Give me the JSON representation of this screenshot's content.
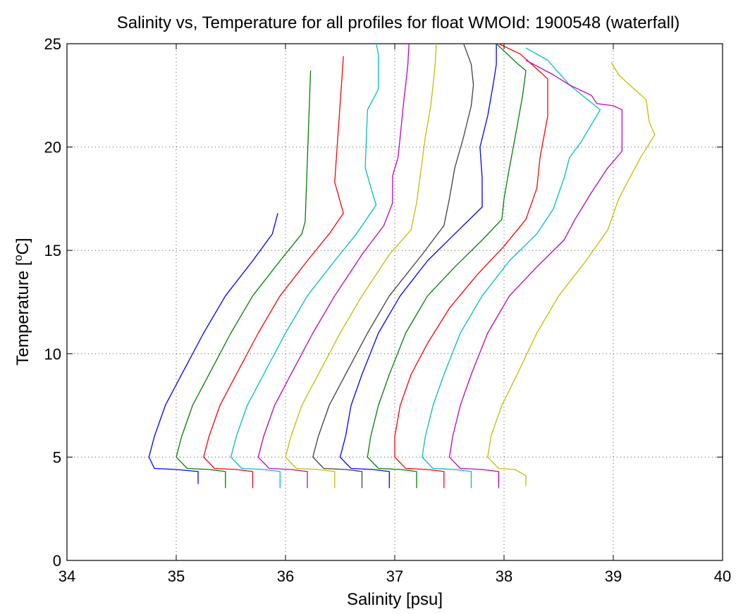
{
  "chart_data": {
    "type": "line",
    "title": "Salinity vs, Temperature for all profiles for float WMOId: 1900548 (waterfall)",
    "xlabel": "Salinity [psu]",
    "ylabel_prefix": "Temperature [",
    "ylabel_sup": "o",
    "ylabel_suffix": "C]",
    "xlim": [
      34,
      40
    ],
    "ylim": [
      0,
      25
    ],
    "xticks": [
      34,
      35,
      36,
      37,
      38,
      39,
      40
    ],
    "yticks": [
      0,
      5,
      10,
      15,
      20,
      25
    ],
    "xtick_labels": [
      "34",
      "35",
      "36",
      "37",
      "38",
      "39",
      "40"
    ],
    "ytick_labels": [
      "0",
      "5",
      "10",
      "15",
      "20",
      "25"
    ],
    "grid": true,
    "series": [
      {
        "color": "#0000ff",
        "points": [
          [
            35.93,
            16.8
          ],
          [
            35.88,
            15.8
          ],
          [
            35.7,
            14.5
          ],
          [
            35.45,
            12.8
          ],
          [
            35.25,
            11.0
          ],
          [
            35.05,
            9.0
          ],
          [
            34.9,
            7.5
          ],
          [
            34.8,
            6.0
          ],
          [
            34.75,
            5.0
          ],
          [
            34.8,
            4.45
          ],
          [
            35.0,
            4.4
          ],
          [
            35.2,
            4.3
          ],
          [
            35.2,
            4.0
          ],
          [
            35.2,
            3.7
          ]
        ]
      },
      {
        "color": "#008000",
        "points": [
          [
            36.23,
            23.7
          ],
          [
            36.18,
            16.4
          ],
          [
            36.15,
            15.8
          ],
          [
            35.95,
            14.5
          ],
          [
            35.7,
            12.8
          ],
          [
            35.5,
            11.0
          ],
          [
            35.3,
            9.0
          ],
          [
            35.15,
            7.5
          ],
          [
            35.05,
            6.0
          ],
          [
            35.0,
            5.0
          ],
          [
            35.1,
            4.45
          ],
          [
            35.3,
            4.4
          ],
          [
            35.45,
            4.3
          ],
          [
            35.45,
            3.9
          ],
          [
            35.45,
            3.5
          ]
        ]
      },
      {
        "color": "#ff0000",
        "points": [
          [
            36.53,
            24.4
          ],
          [
            36.45,
            18.3
          ],
          [
            36.53,
            16.8
          ],
          [
            36.4,
            15.8
          ],
          [
            36.2,
            14.5
          ],
          [
            35.95,
            12.8
          ],
          [
            35.75,
            11.0
          ],
          [
            35.55,
            9.0
          ],
          [
            35.4,
            7.5
          ],
          [
            35.3,
            6.0
          ],
          [
            35.25,
            5.0
          ],
          [
            35.35,
            4.45
          ],
          [
            35.55,
            4.4
          ],
          [
            35.7,
            4.3
          ],
          [
            35.7,
            3.9
          ],
          [
            35.7,
            3.5
          ]
        ]
      },
      {
        "color": "#00bfbf",
        "points": [
          [
            36.83,
            25.0
          ],
          [
            36.85,
            24.5
          ],
          [
            36.85,
            22.8
          ],
          [
            36.75,
            21.8
          ],
          [
            36.73,
            19.0
          ],
          [
            36.8,
            17.7
          ],
          [
            36.83,
            17.2
          ],
          [
            36.65,
            15.8
          ],
          [
            36.45,
            14.5
          ],
          [
            36.2,
            12.8
          ],
          [
            36.0,
            11.0
          ],
          [
            35.8,
            9.0
          ],
          [
            35.65,
            7.5
          ],
          [
            35.55,
            6.0
          ],
          [
            35.5,
            5.0
          ],
          [
            35.6,
            4.45
          ],
          [
            35.8,
            4.4
          ],
          [
            35.95,
            4.3
          ],
          [
            35.95,
            3.9
          ],
          [
            35.95,
            3.5
          ]
        ]
      },
      {
        "color": "#bf00bf",
        "points": [
          [
            37.13,
            25.0
          ],
          [
            37.12,
            24.0
          ],
          [
            37.1,
            23.0
          ],
          [
            37.08,
            22.1
          ],
          [
            37.05,
            20.5
          ],
          [
            37.03,
            19.5
          ],
          [
            36.98,
            18.6
          ],
          [
            36.98,
            17.3
          ],
          [
            36.9,
            16.2
          ],
          [
            36.7,
            14.8
          ],
          [
            36.45,
            12.8
          ],
          [
            36.25,
            11.0
          ],
          [
            36.05,
            9.0
          ],
          [
            35.9,
            7.5
          ],
          [
            35.8,
            6.0
          ],
          [
            35.75,
            5.0
          ],
          [
            35.85,
            4.45
          ],
          [
            36.05,
            4.4
          ],
          [
            36.2,
            4.3
          ],
          [
            36.2,
            3.9
          ],
          [
            36.2,
            3.5
          ]
        ]
      },
      {
        "color": "#bfbf00",
        "points": [
          [
            37.38,
            25.0
          ],
          [
            37.37,
            24.0
          ],
          [
            37.35,
            23.0
          ],
          [
            37.33,
            22.0
          ],
          [
            37.28,
            20.5
          ],
          [
            37.23,
            18.5
          ],
          [
            37.2,
            17.3
          ],
          [
            37.15,
            16.0
          ],
          [
            36.95,
            14.8
          ],
          [
            36.7,
            12.8
          ],
          [
            36.5,
            11.0
          ],
          [
            36.3,
            9.0
          ],
          [
            36.15,
            7.5
          ],
          [
            36.05,
            6.0
          ],
          [
            36.0,
            5.0
          ],
          [
            36.1,
            4.45
          ],
          [
            36.3,
            4.4
          ],
          [
            36.45,
            4.3
          ],
          [
            36.45,
            3.9
          ],
          [
            36.45,
            3.5
          ]
        ]
      },
      {
        "color": "#404040",
        "points": [
          [
            37.63,
            25.0
          ],
          [
            37.7,
            24.0
          ],
          [
            37.72,
            23.0
          ],
          [
            37.7,
            22.0
          ],
          [
            37.63,
            20.5
          ],
          [
            37.55,
            19.0
          ],
          [
            37.5,
            17.5
          ],
          [
            37.45,
            16.2
          ],
          [
            37.25,
            14.8
          ],
          [
            36.95,
            12.8
          ],
          [
            36.75,
            11.0
          ],
          [
            36.55,
            9.0
          ],
          [
            36.4,
            7.5
          ],
          [
            36.3,
            6.0
          ],
          [
            36.25,
            5.0
          ],
          [
            36.35,
            4.45
          ],
          [
            36.55,
            4.4
          ],
          [
            36.7,
            4.3
          ],
          [
            36.7,
            3.9
          ],
          [
            36.7,
            3.5
          ]
        ]
      },
      {
        "color": "#0000ff",
        "points": [
          [
            37.93,
            25.0
          ],
          [
            37.93,
            24.0
          ],
          [
            37.9,
            23.0
          ],
          [
            37.85,
            21.5
          ],
          [
            37.78,
            20.0
          ],
          [
            37.8,
            18.5
          ],
          [
            37.8,
            17.5
          ],
          [
            37.8,
            17.1
          ],
          [
            37.55,
            15.8
          ],
          [
            37.3,
            14.5
          ],
          [
            37.05,
            12.8
          ],
          [
            36.85,
            11.0
          ],
          [
            36.7,
            9.0
          ],
          [
            36.6,
            7.5
          ],
          [
            36.55,
            6.0
          ],
          [
            36.5,
            5.0
          ],
          [
            36.6,
            4.45
          ],
          [
            36.8,
            4.4
          ],
          [
            36.95,
            4.3
          ],
          [
            36.95,
            3.9
          ],
          [
            36.95,
            3.5
          ]
        ]
      },
      {
        "color": "#008000",
        "points": [
          [
            37.93,
            25.0
          ],
          [
            38.13,
            24.0
          ],
          [
            38.2,
            23.7
          ],
          [
            38.17,
            22.5
          ],
          [
            38.12,
            21.0
          ],
          [
            38.05,
            19.0
          ],
          [
            38.0,
            17.5
          ],
          [
            37.98,
            16.5
          ],
          [
            37.8,
            15.5
          ],
          [
            37.55,
            14.2
          ],
          [
            37.3,
            12.8
          ],
          [
            37.1,
            11.0
          ],
          [
            36.95,
            9.0
          ],
          [
            36.85,
            7.5
          ],
          [
            36.78,
            6.0
          ],
          [
            36.75,
            5.0
          ],
          [
            36.85,
            4.45
          ],
          [
            37.05,
            4.4
          ],
          [
            37.2,
            4.3
          ],
          [
            37.2,
            3.9
          ],
          [
            37.2,
            3.5
          ]
        ]
      },
      {
        "color": "#ff0000",
        "points": [
          [
            37.95,
            25.0
          ],
          [
            38.15,
            24.5
          ],
          [
            38.4,
            23.3
          ],
          [
            38.4,
            21.5
          ],
          [
            38.33,
            19.5
          ],
          [
            38.3,
            18.0
          ],
          [
            38.2,
            16.5
          ],
          [
            38.0,
            15.2
          ],
          [
            37.75,
            13.8
          ],
          [
            37.5,
            12.2
          ],
          [
            37.3,
            10.5
          ],
          [
            37.15,
            9.0
          ],
          [
            37.05,
            7.5
          ],
          [
            37.0,
            6.0
          ],
          [
            37.0,
            5.0
          ],
          [
            37.1,
            4.45
          ],
          [
            37.3,
            4.4
          ],
          [
            37.45,
            4.3
          ],
          [
            37.45,
            3.9
          ],
          [
            37.45,
            3.5
          ]
        ]
      },
      {
        "color": "#00bfbf",
        "points": [
          [
            38.2,
            24.8
          ],
          [
            38.4,
            24.2
          ],
          [
            38.6,
            23.0
          ],
          [
            38.88,
            21.8
          ],
          [
            38.7,
            20.2
          ],
          [
            38.6,
            19.5
          ],
          [
            38.55,
            18.5
          ],
          [
            38.45,
            17.0
          ],
          [
            38.3,
            15.8
          ],
          [
            38.05,
            14.5
          ],
          [
            37.8,
            12.8
          ],
          [
            37.6,
            11.0
          ],
          [
            37.45,
            9.0
          ],
          [
            37.35,
            7.5
          ],
          [
            37.28,
            6.0
          ],
          [
            37.25,
            5.0
          ],
          [
            37.35,
            4.45
          ],
          [
            37.55,
            4.4
          ],
          [
            37.7,
            4.3
          ],
          [
            37.7,
            3.9
          ],
          [
            37.7,
            3.5
          ]
        ]
      },
      {
        "color": "#bf00bf",
        "points": [
          [
            38.2,
            24.2
          ],
          [
            38.45,
            23.5
          ],
          [
            38.6,
            23.0
          ],
          [
            38.8,
            22.5
          ],
          [
            38.85,
            22.1
          ],
          [
            39.0,
            22.0
          ],
          [
            39.08,
            21.8
          ],
          [
            39.08,
            19.8
          ],
          [
            38.95,
            19.0
          ],
          [
            38.8,
            17.8
          ],
          [
            38.65,
            16.5
          ],
          [
            38.55,
            15.5
          ],
          [
            38.3,
            14.2
          ],
          [
            38.05,
            12.8
          ],
          [
            37.85,
            11.0
          ],
          [
            37.7,
            9.0
          ],
          [
            37.6,
            7.5
          ],
          [
            37.53,
            6.0
          ],
          [
            37.5,
            5.0
          ],
          [
            37.6,
            4.45
          ],
          [
            37.8,
            4.4
          ],
          [
            37.95,
            4.3
          ],
          [
            37.95,
            3.9
          ],
          [
            37.95,
            3.5
          ]
        ]
      },
      {
        "color": "#bfbf00",
        "points": [
          [
            38.98,
            24.1
          ],
          [
            39.05,
            23.5
          ],
          [
            39.15,
            23.0
          ],
          [
            39.3,
            22.3
          ],
          [
            39.33,
            21.2
          ],
          [
            39.38,
            20.6
          ],
          [
            39.25,
            19.5
          ],
          [
            39.15,
            18.5
          ],
          [
            39.05,
            17.5
          ],
          [
            38.95,
            16.0
          ],
          [
            38.75,
            14.5
          ],
          [
            38.5,
            12.8
          ],
          [
            38.3,
            11.0
          ],
          [
            38.12,
            9.0
          ],
          [
            37.98,
            7.5
          ],
          [
            37.88,
            6.0
          ],
          [
            37.85,
            5.0
          ],
          [
            37.95,
            4.45
          ],
          [
            38.1,
            4.4
          ],
          [
            38.2,
            4.1
          ],
          [
            38.2,
            3.9
          ],
          [
            38.2,
            3.6
          ]
        ]
      }
    ]
  }
}
